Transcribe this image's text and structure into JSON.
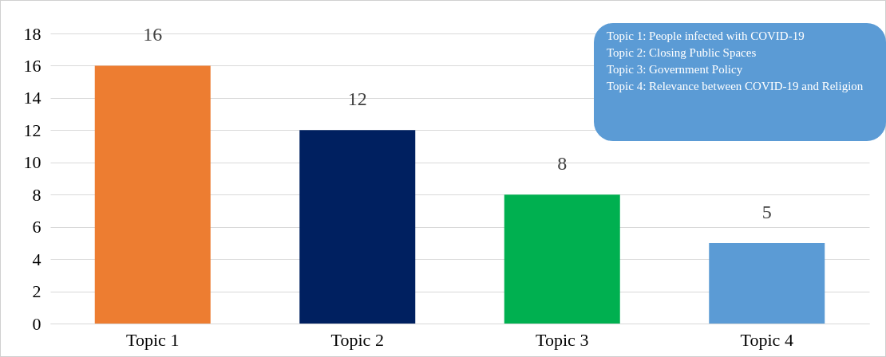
{
  "chart_data": {
    "type": "bar",
    "categories": [
      "Topic 1",
      "Topic 2",
      "Topic 3",
      "Topic 4"
    ],
    "values": [
      16,
      12,
      8,
      5
    ],
    "colors": [
      "#ed7d31",
      "#002060",
      "#00b050",
      "#5b9bd5"
    ],
    "ylim": [
      0,
      18
    ],
    "yticks": [
      0,
      2,
      4,
      6,
      8,
      10,
      12,
      14,
      16,
      18
    ],
    "grid": "y",
    "data_labels": true,
    "annotations": [
      "Topic 1: People infected with COVID-19",
      "Topic 2: Closing Public Spaces",
      "Topic 3: Government Policy",
      "Topic 4: Relevance between COVID-19 and Religion"
    ]
  }
}
